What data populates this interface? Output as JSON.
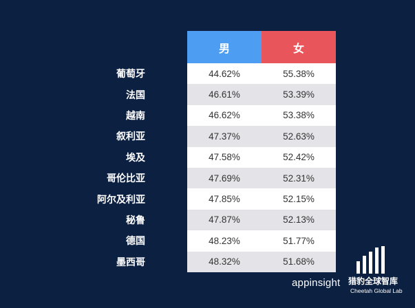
{
  "chart_data": {
    "type": "table",
    "columns": [
      "男",
      "女"
    ],
    "column_colors": [
      "#4d9ef2",
      "#e8555a"
    ],
    "rows": [
      {
        "country": "葡萄牙",
        "male": "44.62%",
        "female": "55.38%"
      },
      {
        "country": "法国",
        "male": "46.61%",
        "female": "53.39%"
      },
      {
        "country": "越南",
        "male": "46.62%",
        "female": "53.38%"
      },
      {
        "country": "叙利亚",
        "male": "47.37%",
        "female": "52.63%"
      },
      {
        "country": "埃及",
        "male": "47.58%",
        "female": "52.42%"
      },
      {
        "country": "哥伦比亚",
        "male": "47.69%",
        "female": "52.31%"
      },
      {
        "country": "阿尔及利亚",
        "male": "47.85%",
        "female": "52.15%"
      },
      {
        "country": "秘鲁",
        "male": "47.87%",
        "female": "52.13%"
      },
      {
        "country": "德国",
        "male": "48.23%",
        "female": "51.77%"
      },
      {
        "country": "墨西哥",
        "male": "48.32%",
        "female": "51.68%"
      }
    ]
  },
  "branding": {
    "appinsight": "appinsight",
    "cheetah_cn": "猎豹全球智库",
    "cheetah_en": "Cheetah Global Lab"
  },
  "colors": {
    "background": "#0c2042",
    "male": "#4d9ef2",
    "female": "#e8555a"
  }
}
